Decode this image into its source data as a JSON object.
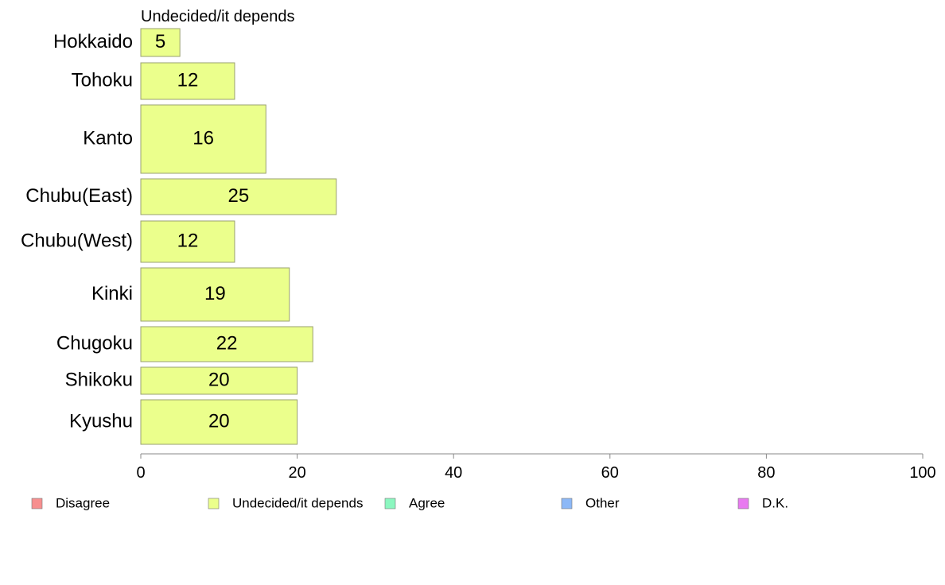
{
  "chart_data": {
    "type": "bar",
    "orientation": "horizontal",
    "panel_title": "Undecided/it depends",
    "categories": [
      "Hokkaido",
      "Tohoku",
      "Kanto",
      "Chubu(East)",
      "Chubu(West)",
      "Kinki",
      "Chugoku",
      "Shikoku",
      "Kyushu"
    ],
    "values": [
      5,
      12,
      16,
      25,
      12,
      19,
      22,
      20,
      20
    ],
    "value_labels": [
      "5",
      "12",
      "16",
      "25",
      "12",
      "19",
      "22",
      "20",
      "20"
    ],
    "xlim": [
      0,
      100
    ],
    "x_ticks": [
      0,
      20,
      40,
      60,
      80,
      100
    ],
    "bar_color": "#ebff8c",
    "bar_stroke": "#9aa070",
    "legend_position": "bottom",
    "legend": [
      {
        "name": "Disagree",
        "color": "#f78f8f"
      },
      {
        "name": "Undecided/it depends",
        "color": "#ebff8c"
      },
      {
        "name": "Agree",
        "color": "#8cf7c0"
      },
      {
        "name": "Other",
        "color": "#8cb8f7"
      },
      {
        "name": "D.K.",
        "color": "#e87af0"
      }
    ]
  }
}
